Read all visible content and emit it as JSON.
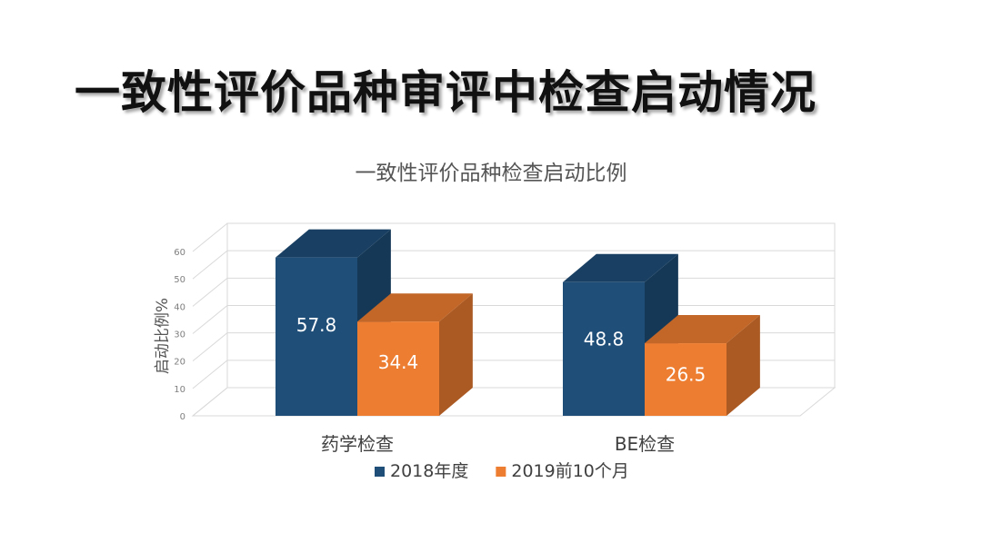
{
  "slide": {
    "title": "一致性评价品种审评中检查启动情况"
  },
  "chart_data": {
    "type": "bar",
    "title": "一致性评价品种检查启动比例",
    "ylabel": "启动比例%",
    "xlabel": "",
    "categories": [
      "药学检查",
      "BE检查"
    ],
    "series": [
      {
        "name": "2018年度",
        "values": [
          57.8,
          48.8
        ],
        "color": "#1f4e79"
      },
      {
        "name": "2019前10个月",
        "values": [
          34.4,
          26.5
        ],
        "color": "#ed7d31"
      }
    ],
    "ylim": [
      0,
      60
    ],
    "yticks": [
      0,
      10,
      20,
      30,
      40,
      50,
      60
    ],
    "grid": true,
    "legend": "bottom",
    "style": "3d-column",
    "data_labels": true
  }
}
